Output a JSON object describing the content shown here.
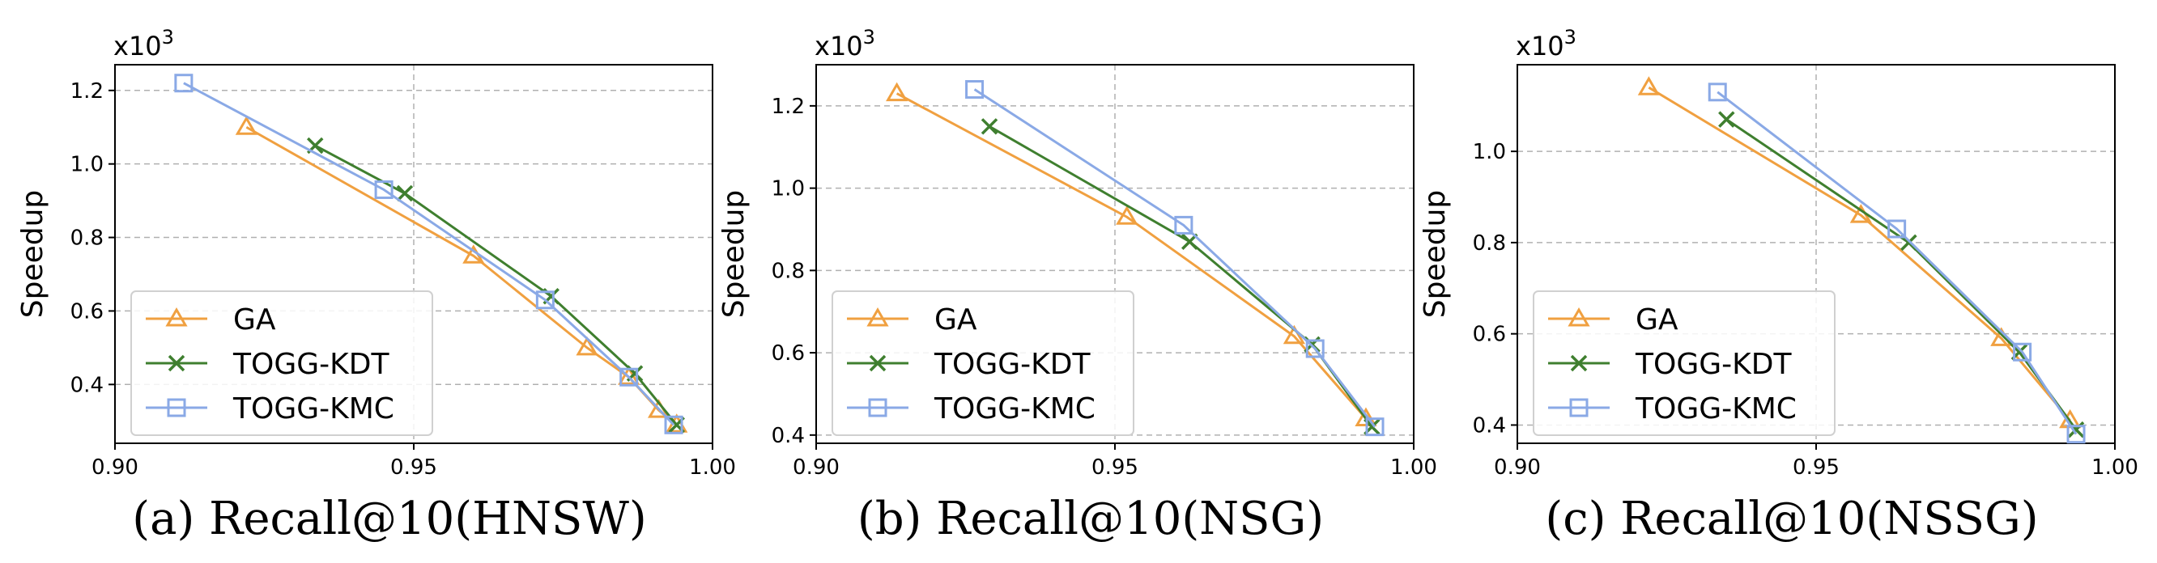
{
  "chart_data": [
    {
      "type": "line",
      "caption": "(a) Recall@10(HNSW)",
      "ylabel": "Speedup",
      "y_multiplier": "x10",
      "y_multiplier_exp": "3",
      "xlim": [
        0.9,
        1.0
      ],
      "ylim": [
        0.24,
        1.27
      ],
      "xticks": [
        0.9,
        0.95,
        1.0
      ],
      "xtick_labels": [
        "0.90",
        "0.95",
        "1.00"
      ],
      "yticks": [
        0.4,
        0.6,
        0.8,
        1.0,
        1.2
      ],
      "ytick_labels": [
        "0.4",
        "0.6",
        "0.8",
        "1.0",
        "1.2"
      ],
      "grid": true,
      "legend_position": "lower-left",
      "series": [
        {
          "name": "GA",
          "color": "#f0a040",
          "marker": "triangle",
          "x": [
            0.922,
            0.96,
            0.979,
            0.986,
            0.991,
            0.994
          ],
          "y": [
            1.1,
            0.75,
            0.5,
            0.42,
            0.33,
            0.29
          ]
        },
        {
          "name": "TOGG-KDT",
          "color": "#3f7f2f",
          "marker": "x",
          "x": [
            0.9335,
            0.9485,
            0.973,
            0.987,
            0.994
          ],
          "y": [
            1.05,
            0.92,
            0.64,
            0.43,
            0.29
          ]
        },
        {
          "name": "TOGG-KMC",
          "color": "#8aa9e6",
          "marker": "square",
          "x": [
            0.9115,
            0.945,
            0.972,
            0.986,
            0.9935
          ],
          "y": [
            1.22,
            0.93,
            0.63,
            0.42,
            0.29
          ]
        }
      ]
    },
    {
      "type": "line",
      "caption": "(b) Recall@10(NSG)",
      "ylabel": "Speedup",
      "y_multiplier": "x10",
      "y_multiplier_exp": "3",
      "xlim": [
        0.9,
        1.0
      ],
      "ylim": [
        0.38,
        1.3
      ],
      "xticks": [
        0.9,
        0.95,
        1.0
      ],
      "xtick_labels": [
        "0.90",
        "0.95",
        "1.00"
      ],
      "yticks": [
        0.4,
        0.6,
        0.8,
        1.0,
        1.2
      ],
      "ytick_labels": [
        "0.4",
        "0.6",
        "0.8",
        "1.0",
        "1.2"
      ],
      "grid": true,
      "legend_position": "lower-left",
      "series": [
        {
          "name": "GA",
          "color": "#f0a040",
          "marker": "triangle",
          "x": [
            0.9135,
            0.952,
            0.98,
            0.992
          ],
          "y": [
            1.23,
            0.93,
            0.64,
            0.44
          ]
        },
        {
          "name": "TOGG-KDT",
          "color": "#3f7f2f",
          "marker": "x",
          "x": [
            0.929,
            0.9625,
            0.983,
            0.993
          ],
          "y": [
            1.15,
            0.87,
            0.62,
            0.42
          ]
        },
        {
          "name": "TOGG-KMC",
          "color": "#8aa9e6",
          "marker": "square",
          "x": [
            0.9265,
            0.9615,
            0.9835,
            0.9935
          ],
          "y": [
            1.24,
            0.91,
            0.61,
            0.42
          ]
        }
      ]
    },
    {
      "type": "line",
      "caption": "(c) Recall@10(NSSG)",
      "ylabel": "Speedup",
      "y_multiplier": "x10",
      "y_multiplier_exp": "3",
      "xlim": [
        0.9,
        1.0
      ],
      "ylim": [
        0.36,
        1.19
      ],
      "xticks": [
        0.9,
        0.95,
        1.0
      ],
      "xtick_labels": [
        "0.90",
        "0.95",
        "1.00"
      ],
      "yticks": [
        0.4,
        0.6,
        0.8,
        1.0
      ],
      "ytick_labels": [
        "0.4",
        "0.6",
        "0.8",
        "1.0"
      ],
      "grid": true,
      "legend_position": "lower-left",
      "series": [
        {
          "name": "GA",
          "color": "#f0a040",
          "marker": "triangle",
          "x": [
            0.922,
            0.9575,
            0.981,
            0.9925
          ],
          "y": [
            1.14,
            0.86,
            0.59,
            0.41
          ]
        },
        {
          "name": "TOGG-KDT",
          "color": "#3f7f2f",
          "marker": "x",
          "x": [
            0.935,
            0.9655,
            0.984,
            0.9935
          ],
          "y": [
            1.07,
            0.8,
            0.56,
            0.39
          ]
        },
        {
          "name": "TOGG-KMC",
          "color": "#8aa9e6",
          "marker": "square",
          "x": [
            0.9335,
            0.9635,
            0.9845,
            0.9935
          ],
          "y": [
            1.13,
            0.83,
            0.56,
            0.38
          ]
        }
      ]
    }
  ]
}
